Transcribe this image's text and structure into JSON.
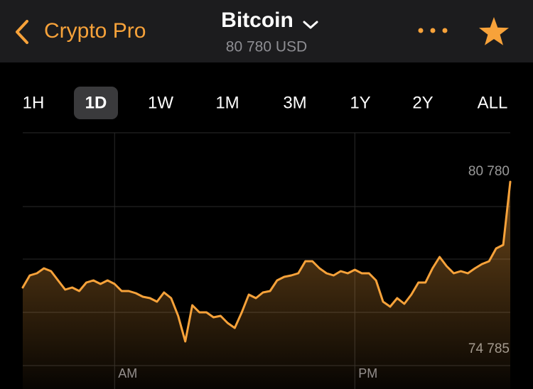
{
  "header": {
    "back_label": "Crypto Pro",
    "title": "Bitcoin",
    "price": "80 780 USD"
  },
  "ranges": [
    "1H",
    "1D",
    "1W",
    "1M",
    "3M",
    "1Y",
    "2Y",
    "ALL"
  ],
  "selected_range_index": 1,
  "chart_data": {
    "type": "area",
    "color": "#f7a23a",
    "categories": [
      null,
      null,
      null,
      null,
      null,
      null,
      null,
      null,
      null,
      null,
      null,
      null,
      null,
      "AM",
      null,
      null,
      null,
      null,
      null,
      null,
      null,
      null,
      null,
      null,
      null,
      null,
      null,
      null,
      null,
      null,
      null,
      null,
      null,
      null,
      null,
      null,
      null,
      null,
      null,
      null,
      null,
      null,
      null,
      null,
      null,
      null,
      null,
      "PM",
      null,
      null,
      null,
      null,
      null,
      null,
      null,
      null,
      null,
      null,
      null,
      null,
      null,
      null,
      null,
      null,
      null,
      null,
      null,
      null,
      null,
      null
    ],
    "values": [
      76811,
      77264,
      77343,
      77530,
      77423,
      77077,
      76731,
      76811,
      76677,
      76997,
      77077,
      76944,
      77077,
      76944,
      76677,
      76677,
      76598,
      76464,
      76411,
      76278,
      76624,
      76411,
      75745,
      74785,
      76145,
      75878,
      75878,
      75692,
      75745,
      75479,
      75292,
      75878,
      76544,
      76411,
      76624,
      76677,
      77077,
      77210,
      77264,
      77343,
      77796,
      77796,
      77530,
      77343,
      77264,
      77423,
      77343,
      77477,
      77343,
      77343,
      77077,
      76278,
      76091,
      76411,
      76198,
      76544,
      76997,
      76997,
      77530,
      77956,
      77610,
      77343,
      77423,
      77343,
      77530,
      77690,
      77796,
      78276,
      78409,
      80780
    ],
    "ylim": [
      73880,
      82620
    ],
    "yticks": [
      {
        "value": 80780,
        "label": "80 780"
      },
      {
        "value": 74785,
        "label": "74 785"
      }
    ]
  }
}
